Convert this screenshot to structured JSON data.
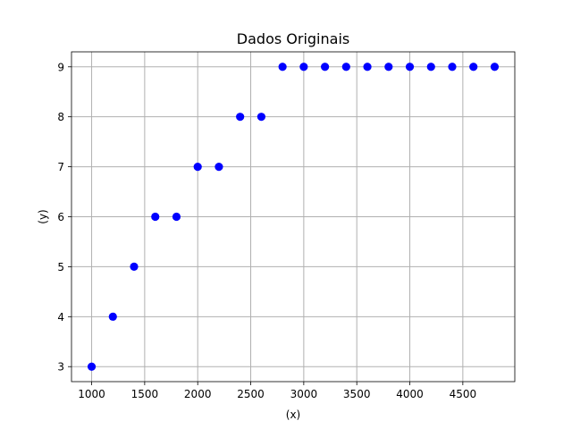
{
  "chart_data": {
    "type": "scatter",
    "title": "Dados Originais",
    "xlabel": "(x)",
    "ylabel": "(y)",
    "xlim": [
      810,
      4990
    ],
    "ylim": [
      2.7,
      9.3
    ],
    "xticks": [
      1000,
      1500,
      2000,
      2500,
      3000,
      3500,
      4000,
      4500
    ],
    "yticks": [
      3,
      4,
      5,
      6,
      7,
      8,
      9
    ],
    "grid": true,
    "series": [
      {
        "color": "#0000ff",
        "marker": "circle",
        "x": [
          1000,
          1200,
          1400,
          1600,
          1800,
          2000,
          2200,
          2400,
          2600,
          2800,
          3000,
          3200,
          3400,
          3600,
          3800,
          4000,
          4200,
          4400,
          4600,
          4800
        ],
        "y": [
          3,
          4,
          5,
          6,
          6,
          7,
          7,
          8,
          8,
          9,
          9,
          9,
          9,
          9,
          9,
          9,
          9,
          9,
          9,
          9
        ]
      }
    ]
  }
}
